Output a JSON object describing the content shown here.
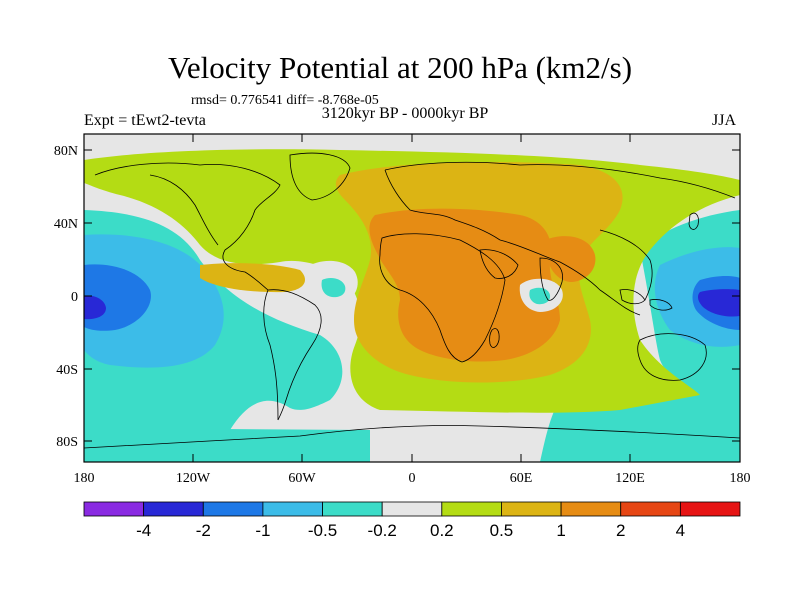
{
  "title": "Velocity Potential at 200 hPa (km2/s)",
  "stats": "rmsd= 0.776541 diff= -8.768e-05",
  "left_label": "Expt = tEwt2-tevta",
  "center_label": "3120kyr BP - 0000kyr BP",
  "right_label": "JJA",
  "lon_ticks": [
    "180",
    "120W",
    "60W",
    "0",
    "60E",
    "120E",
    "180"
  ],
  "lat_ticks": [
    "80N",
    "40N",
    "0",
    "40S",
    "80S"
  ],
  "colorbar": {
    "colors": [
      "#8a2be2",
      "#2828d6",
      "#1e78e6",
      "#3cbce8",
      "#3cdcc8",
      "#e6e6e6",
      "#b4dc14",
      "#dcb414",
      "#e68c14",
      "#e64614",
      "#e61414"
    ],
    "labels": [
      "-4",
      "-2",
      "-1",
      "-0.5",
      "-0.2",
      "0.2",
      "0.5",
      "1",
      "2",
      "4"
    ]
  },
  "icons": {
    "map": "world-coastline-map"
  }
}
